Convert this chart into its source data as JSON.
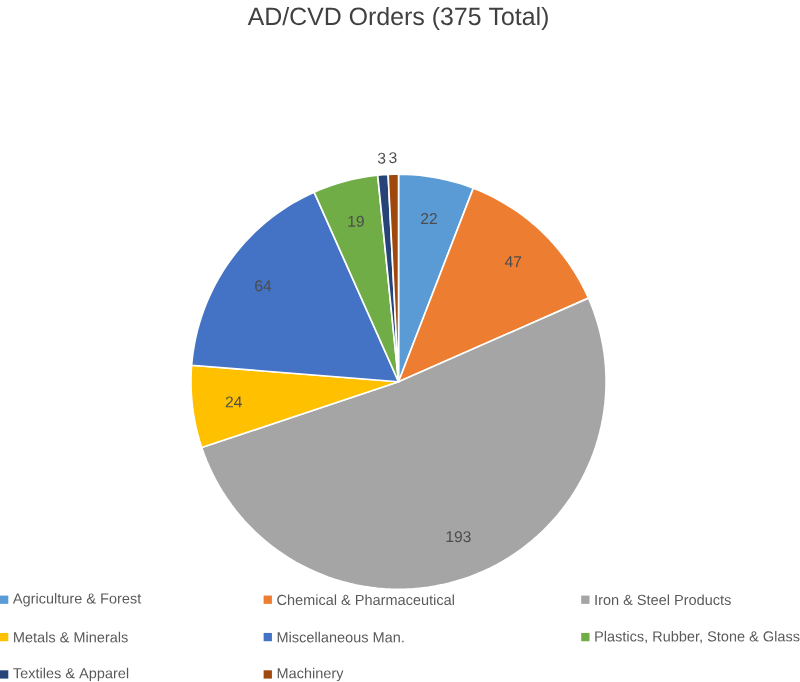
{
  "chart_data": {
    "type": "pie",
    "title": "AD/CVD Orders (375 Total)",
    "categories": [
      "Agriculture & Forest",
      "Chemical & Pharmaceutical",
      "Iron & Steel Products",
      "Metals & Minerals",
      "Miscellaneous Man.",
      "Plastics, Rubber, Stone & Glass",
      "Textiles & Apparel",
      "Machinery"
    ],
    "values": [
      22,
      47,
      193,
      24,
      64,
      19,
      3,
      3
    ],
    "colors": [
      "#5b9bd5",
      "#ed7d31",
      "#a5a5a5",
      "#ffc000",
      "#4472c4",
      "#70ad47",
      "#264478",
      "#9e480e"
    ],
    "data_labels": true,
    "legend": "bottom"
  }
}
